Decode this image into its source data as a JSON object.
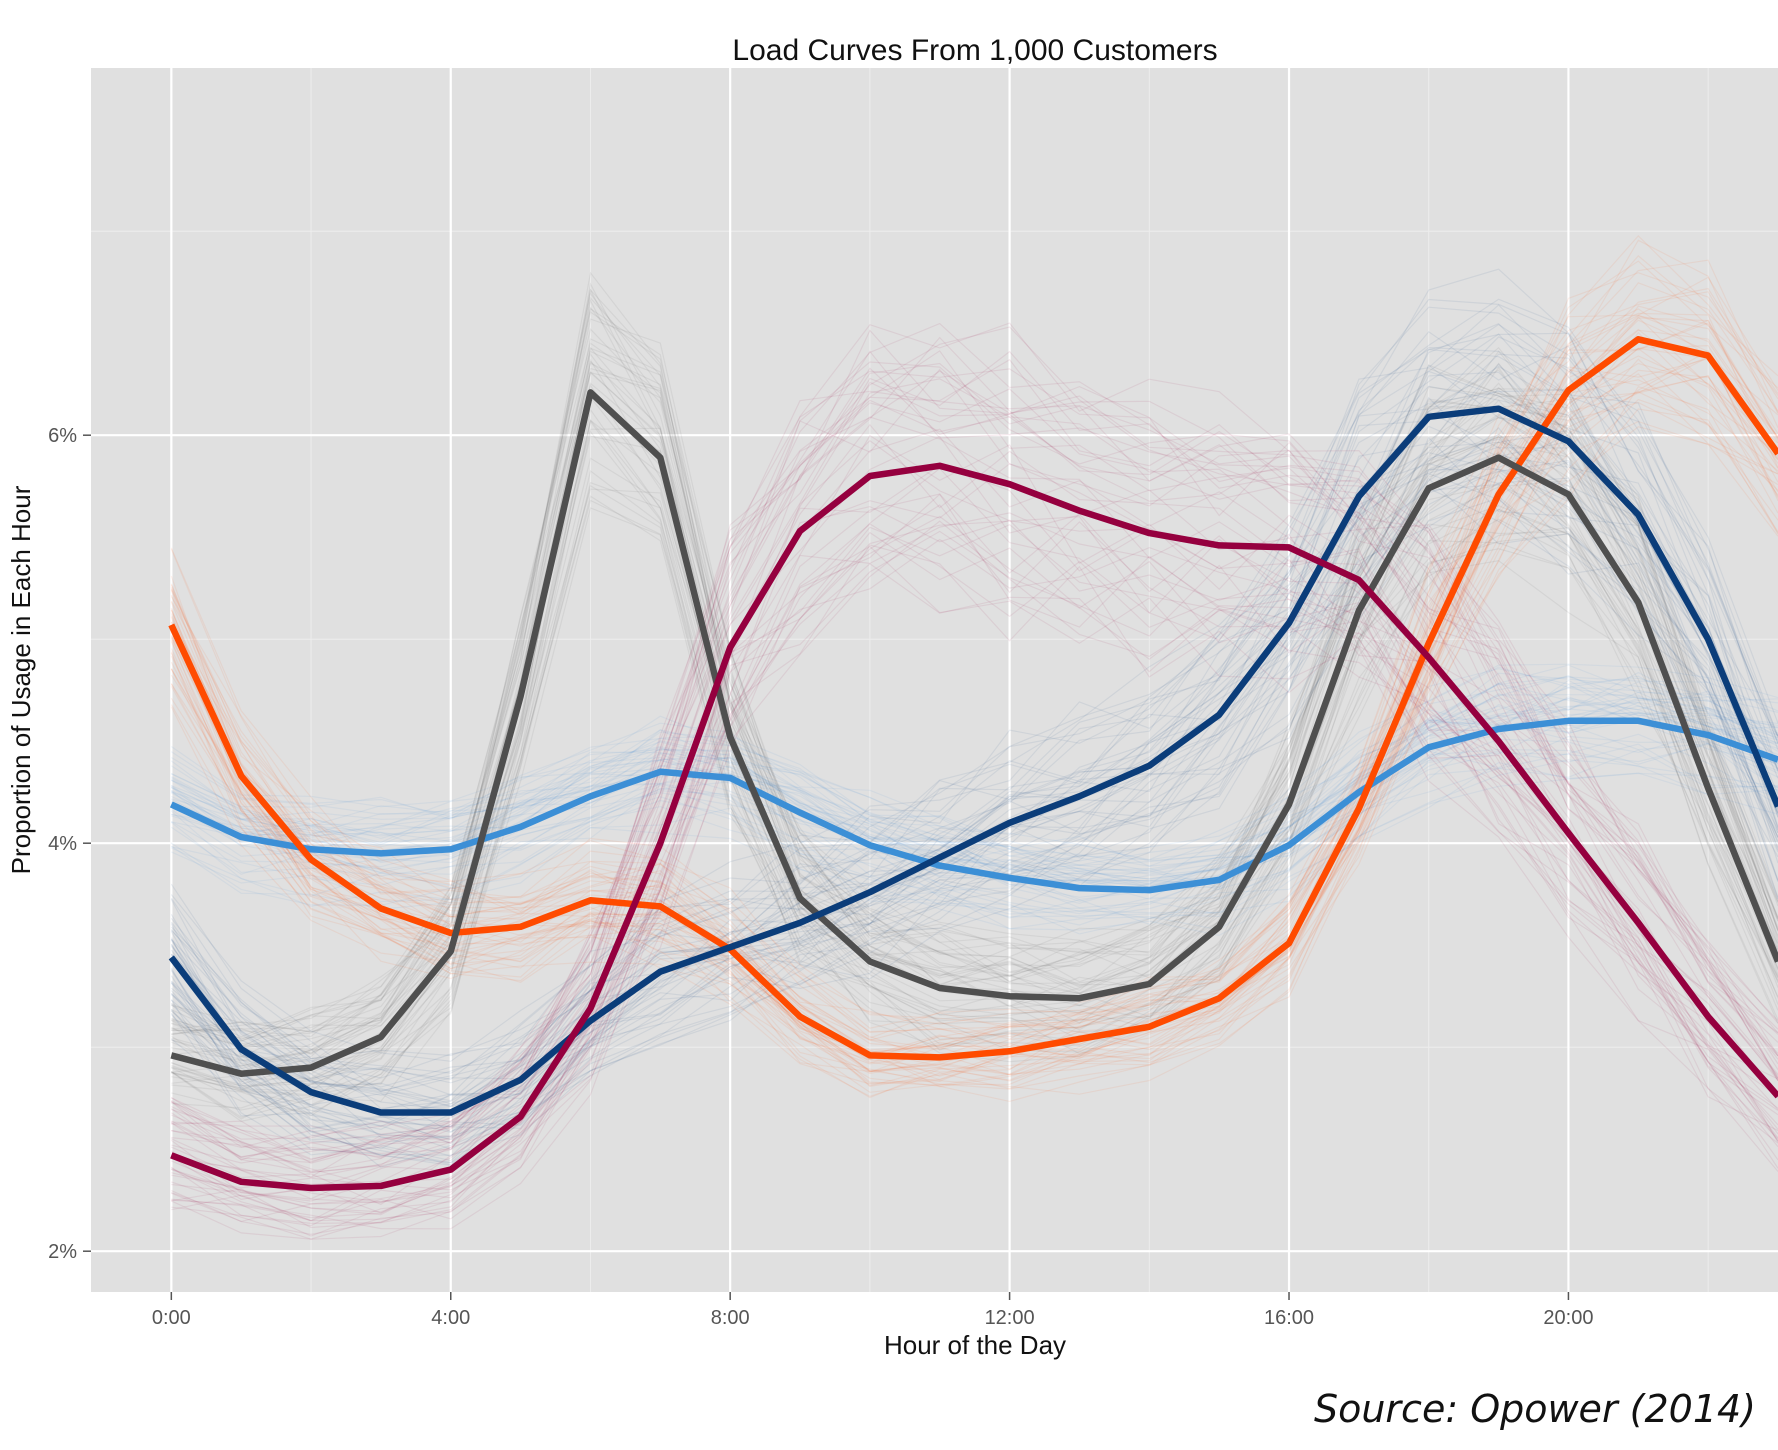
{
  "chart_data": {
    "type": "line",
    "title": "Load Curves From 1,000 Customers",
    "xlabel": "Hour of the Day",
    "ylabel": "Proportion of Usage in Each Hour",
    "x_tick_labels": [
      "0:00",
      "4:00",
      "8:00",
      "12:00",
      "16:00",
      "20:00"
    ],
    "x_tick_values": [
      0,
      4,
      8,
      12,
      16,
      20
    ],
    "y_tick_labels": [
      "2%",
      "4%",
      "6%"
    ],
    "y_tick_values": [
      2,
      4,
      6
    ],
    "xlim": [
      -1.15,
      23
    ],
    "ylim": [
      1.8,
      7.8
    ],
    "grid": true,
    "legend": "none",
    "x": [
      0,
      1,
      2,
      3,
      4,
      5,
      6,
      7,
      8,
      9,
      10,
      11,
      12,
      13,
      14,
      15,
      16,
      17,
      18,
      19,
      20,
      21,
      22,
      23
    ],
    "series": [
      {
        "color": "#3c8fd6",
        "values": [
          4.19,
          4.03,
          3.97,
          3.95,
          3.97,
          4.08,
          4.23,
          4.35,
          4.32,
          4.15,
          3.99,
          3.89,
          3.83,
          3.78,
          3.77,
          3.82,
          3.99,
          4.25,
          4.47,
          4.56,
          4.6,
          4.6,
          4.53,
          4.41
        ]
      },
      {
        "color": "#ff4b00",
        "values": [
          5.07,
          4.33,
          3.92,
          3.68,
          3.56,
          3.59,
          3.72,
          3.69,
          3.48,
          3.15,
          2.96,
          2.95,
          2.98,
          3.04,
          3.1,
          3.24,
          3.51,
          4.17,
          4.98,
          5.71,
          6.22,
          6.47,
          6.39,
          5.91
        ]
      },
      {
        "color": "#4f4f4f",
        "values": [
          2.96,
          2.87,
          2.9,
          3.05,
          3.47,
          4.72,
          6.21,
          5.89,
          4.52,
          3.73,
          3.42,
          3.29,
          3.25,
          3.24,
          3.31,
          3.59,
          4.19,
          5.14,
          5.74,
          5.89,
          5.71,
          5.18,
          4.27,
          3.42
        ]
      },
      {
        "color": "#0b3d7a",
        "values": [
          3.44,
          2.99,
          2.78,
          2.68,
          2.68,
          2.84,
          3.13,
          3.37,
          3.49,
          3.61,
          3.76,
          3.93,
          4.1,
          4.23,
          4.38,
          4.63,
          5.08,
          5.7,
          6.09,
          6.13,
          5.97,
          5.61,
          5.0,
          4.18
        ]
      },
      {
        "color": "#95003f",
        "values": [
          2.47,
          2.34,
          2.31,
          2.32,
          2.4,
          2.66,
          3.19,
          4.0,
          4.96,
          5.53,
          5.8,
          5.85,
          5.76,
          5.63,
          5.52,
          5.46,
          5.45,
          5.29,
          4.91,
          4.5,
          4.05,
          3.61,
          3.15,
          2.76
        ]
      }
    ]
  },
  "source_note": "Source: Opower (2014)"
}
